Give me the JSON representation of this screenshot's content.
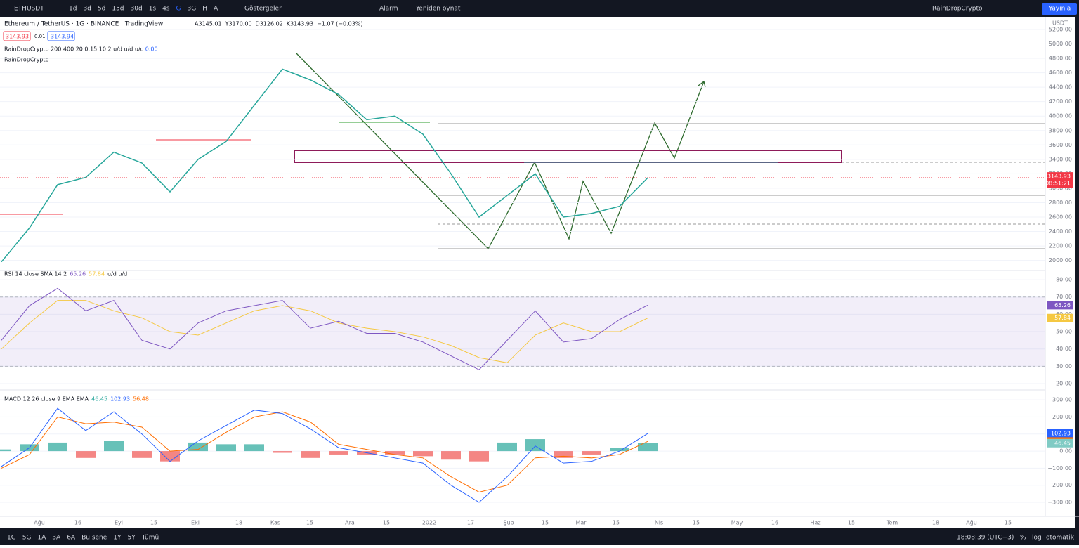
{
  "toolbar": {
    "symbol": "ETHUSDT",
    "intervals": [
      "1d",
      "3d",
      "5d",
      "15d",
      "30d",
      "1s",
      "4s",
      "G",
      "3G",
      "H",
      "A"
    ],
    "indicators": "Göstergeler",
    "alarm": "Alarm",
    "replay": "Yeniden oynat",
    "layout_name": "RainDropCrypto",
    "publish": "Yayınla"
  },
  "legend": {
    "title": "Ethereum / TetherUS · 1G · BINANCE · TradingView",
    "ohlc": [
      "A3145.01",
      "Y3170.00",
      "D3126.02",
      "K3143.93"
    ],
    "change": "−1.07 (−0.03%)",
    "bid": "3143.93",
    "spread": "0.01",
    "ask": "3143.94",
    "indicator1": "RainDropCrypto 200 400 20 0.15 10 2  u/d  u/d  u/d",
    "indicator1_value": "0.00",
    "indicator2": "RainDropCrypto",
    "currency": "USDT"
  },
  "price": {
    "color": "#26a69a",
    "values": [
      1980,
      2450,
      3050,
      3150,
      3500,
      3350,
      2950,
      3400,
      3650,
      4150,
      4650,
      4500,
      4300,
      3950,
      4000,
      3750,
      3200,
      2600,
      2900,
      3200,
      2600,
      2650,
      2750,
      3143.93
    ],
    "ylim": [
      1860,
      5375
    ],
    "yticks": [
      {
        "value": 2000,
        "label": "2000.00"
      },
      {
        "value": 2200,
        "label": "2200.00"
      },
      {
        "value": 2400,
        "label": "2400.00"
      },
      {
        "value": 2600,
        "label": "2600.00"
      },
      {
        "value": 2800,
        "label": "2800.00"
      },
      {
        "value": 3000,
        "label": "3000.00"
      },
      {
        "value": 3200,
        "label": "3200.00"
      },
      {
        "value": 3400,
        "label": "3400.00"
      },
      {
        "value": 3600,
        "label": "3600.00"
      },
      {
        "value": 3800,
        "label": "3800.00"
      },
      {
        "value": 4000,
        "label": "4000.00"
      },
      {
        "value": 4200,
        "label": "4200.00"
      },
      {
        "value": 4400,
        "label": "4400.00"
      },
      {
        "value": 4600,
        "label": "4600.00"
      },
      {
        "value": 4800,
        "label": "4800.00"
      },
      {
        "value": 5000,
        "label": "5000.00"
      },
      {
        "value": 5200,
        "label": "5200.00"
      }
    ],
    "countdown": "08:51:21"
  },
  "rsi": {
    "legend": "RSI 14 close SMA 14 2",
    "tail": "u/d u/d",
    "color": "#7e57c2",
    "sma_color": "#f5c842",
    "values": [
      45,
      65,
      75,
      62,
      68,
      45,
      40,
      55,
      62,
      65,
      68,
      52,
      56,
      49,
      49,
      44,
      36,
      28,
      45,
      62,
      44,
      46,
      57,
      65.26
    ],
    "sma": [
      40,
      55,
      68,
      68,
      62,
      58,
      50,
      48,
      55,
      62,
      65,
      62,
      55,
      52,
      50,
      47,
      42,
      35,
      32,
      48,
      55,
      50,
      50,
      57.84
    ],
    "ylim": [
      16.35,
      85.3
    ],
    "yticks": [
      {
        "value": 20,
        "label": "20.00"
      },
      {
        "value": 30,
        "label": "30.00"
      },
      {
        "value": 40,
        "label": "40.00"
      },
      {
        "value": 50,
        "label": "50.00"
      },
      {
        "value": 60,
        "label": "60.00"
      },
      {
        "value": 70,
        "label": "70.00"
      },
      {
        "value": 80,
        "label": "80.00"
      }
    ],
    "band": [
      30,
      70
    ]
  },
  "macd": {
    "legend": "MACD 12 26 close 9 EMA EMA",
    "macd_color": "#2962ff",
    "signal_color": "#ff6d00",
    "histogram": [
      10,
      40,
      50,
      -40,
      60,
      -40,
      -60,
      50,
      40,
      40,
      -10,
      -40,
      -20,
      -20,
      -20,
      -30,
      -50,
      -60,
      50,
      70,
      -40,
      -20,
      20,
      46.45
    ],
    "macd": [
      -90,
      20,
      250,
      120,
      230,
      100,
      -60,
      60,
      150,
      240,
      220,
      130,
      20,
      -10,
      -40,
      -70,
      -200,
      -300,
      -150,
      30,
      -70,
      -60,
      0,
      102.93
    ],
    "signal": [
      -100,
      -20,
      200,
      160,
      170,
      140,
      0,
      10,
      110,
      200,
      230,
      170,
      40,
      10,
      -20,
      -40,
      -150,
      -240,
      -200,
      -40,
      -30,
      -40,
      -20,
      56.48
    ],
    "ylim": [
      -382,
      358
    ],
    "yticks": [
      {
        "value": -300,
        "label": "−300.00"
      },
      {
        "value": -200,
        "label": "−200.00"
      },
      {
        "value": -100,
        "label": "−100.00"
      },
      {
        "value": 0,
        "label": "0.00"
      },
      {
        "value": 100,
        "label": "100.00"
      },
      {
        "value": 200,
        "label": "200.00"
      },
      {
        "value": 300,
        "label": "300.00"
      }
    ]
  },
  "time_axis": [
    "Ağu",
    "16",
    "Eyl",
    "15",
    "Eki",
    "18",
    "Kas",
    "15",
    "Ara",
    "15",
    "2022",
    "17",
    "Şub",
    "15",
    "Mar",
    "15",
    "Nis",
    "15",
    "May",
    "16",
    "Haz",
    "15",
    "Tem",
    "18",
    "Ağu",
    "15"
  ],
  "bottom_bar": {
    "ranges": [
      "1G",
      "5G",
      "1A",
      "3A",
      "6A",
      "Bu sene",
      "1Y",
      "5Y",
      "Tümü"
    ],
    "clock": "18:08:39 (UTC+3)",
    "percent": "%",
    "log": "log",
    "auto": "otomatik"
  }
}
